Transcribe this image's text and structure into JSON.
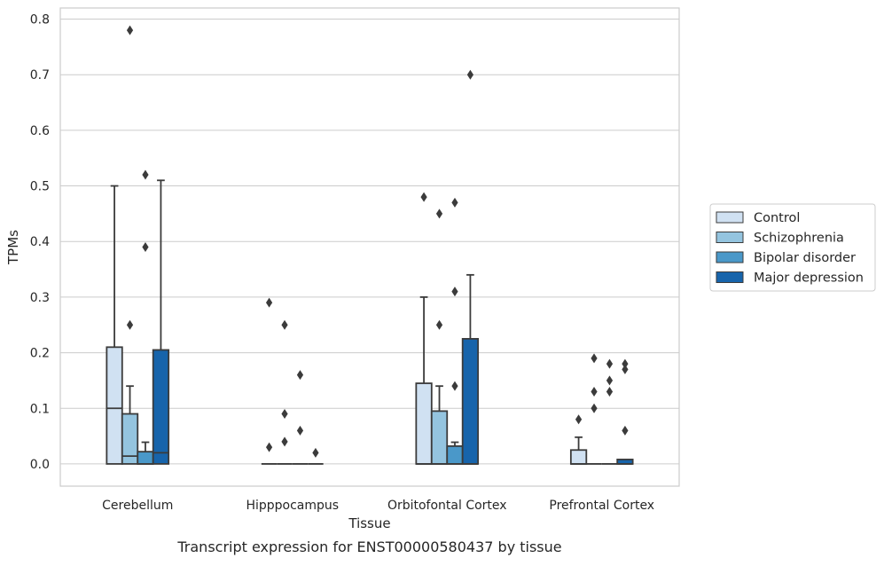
{
  "chart_data": {
    "type": "box",
    "title": "Transcript expression for ENST00000580437 by tissue",
    "xlabel": "Tissue",
    "ylabel": "TPMs",
    "ylim": [
      -0.04,
      0.82
    ],
    "yticks": [
      "0.0",
      "0.1",
      "0.2",
      "0.3",
      "0.4",
      "0.5",
      "0.6",
      "0.7",
      "0.8"
    ],
    "ytick_values": [
      0.0,
      0.1,
      0.2,
      0.3,
      0.4,
      0.5,
      0.6,
      0.7,
      0.8
    ],
    "grid": "horizontal",
    "legend_position": "right",
    "categories": [
      "Cerebellum",
      "Hipppocampus",
      "Orbitofontal Cortex",
      "Prefrontal Cortex"
    ],
    "series": [
      {
        "name": "Control",
        "color": "#d0e1f2",
        "boxes": [
          {
            "q1": 0.0,
            "median": 0.1,
            "q3": 0.21,
            "whisker_low": 0.0,
            "whisker_high": 0.5,
            "outliers": []
          },
          {
            "q1": 0.0,
            "median": 0.0,
            "q3": 0.0,
            "whisker_low": 0.0,
            "whisker_high": 0.0,
            "outliers": [
              0.29,
              0.03
            ]
          },
          {
            "q1": 0.0,
            "median": 0.0,
            "q3": 0.145,
            "whisker_low": 0.0,
            "whisker_high": 0.3,
            "outliers": [
              0.48
            ]
          },
          {
            "q1": 0.0,
            "median": 0.0,
            "q3": 0.025,
            "whisker_low": 0.0,
            "whisker_high": 0.048,
            "outliers": [
              0.08
            ]
          }
        ]
      },
      {
        "name": "Schizophrenia",
        "color": "#94c4df",
        "boxes": [
          {
            "q1": 0.0,
            "median": 0.014,
            "q3": 0.09,
            "whisker_low": 0.0,
            "whisker_high": 0.14,
            "outliers": [
              0.78,
              0.25
            ]
          },
          {
            "q1": 0.0,
            "median": 0.0,
            "q3": 0.0,
            "whisker_low": 0.0,
            "whisker_high": 0.0,
            "outliers": [
              0.25,
              0.09,
              0.04
            ]
          },
          {
            "q1": 0.0,
            "median": 0.0,
            "q3": 0.095,
            "whisker_low": 0.0,
            "whisker_high": 0.14,
            "outliers": [
              0.45,
              0.25
            ]
          },
          {
            "q1": 0.0,
            "median": 0.0,
            "q3": 0.0,
            "whisker_low": 0.0,
            "whisker_high": 0.0,
            "outliers": [
              0.19,
              0.13,
              0.1
            ]
          }
        ]
      },
      {
        "name": "Bipolar disorder",
        "color": "#4a98c9",
        "boxes": [
          {
            "q1": 0.0,
            "median": 0.0,
            "q3": 0.022,
            "whisker_low": 0.0,
            "whisker_high": 0.039,
            "outliers": [
              0.52,
              0.39
            ]
          },
          {
            "q1": 0.0,
            "median": 0.0,
            "q3": 0.0,
            "whisker_low": 0.0,
            "whisker_high": 0.0,
            "outliers": [
              0.16,
              0.06
            ]
          },
          {
            "q1": 0.0,
            "median": 0.0,
            "q3": 0.032,
            "whisker_low": 0.0,
            "whisker_high": 0.039,
            "outliers": [
              0.47,
              0.31,
              0.14
            ]
          },
          {
            "q1": 0.0,
            "median": 0.0,
            "q3": 0.0,
            "whisker_low": 0.0,
            "whisker_high": 0.0,
            "outliers": [
              0.18,
              0.15,
              0.13
            ]
          }
        ]
      },
      {
        "name": "Major depression",
        "color": "#1764ab",
        "boxes": [
          {
            "q1": 0.0,
            "median": 0.02,
            "q3": 0.205,
            "whisker_low": 0.0,
            "whisker_high": 0.51,
            "outliers": []
          },
          {
            "q1": 0.0,
            "median": 0.0,
            "q3": 0.0,
            "whisker_low": 0.0,
            "whisker_high": 0.0,
            "outliers": [
              0.02
            ]
          },
          {
            "q1": 0.0,
            "median": 0.0,
            "q3": 0.225,
            "whisker_low": 0.0,
            "whisker_high": 0.34,
            "outliers": [
              0.7
            ]
          },
          {
            "q1": 0.0,
            "median": 0.0,
            "q3": 0.008,
            "whisker_low": 0.0,
            "whisker_high": 0.008,
            "outliers": [
              0.18,
              0.17,
              0.06
            ]
          }
        ]
      }
    ]
  }
}
